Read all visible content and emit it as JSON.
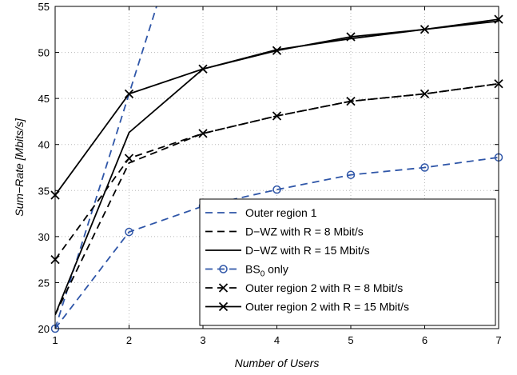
{
  "chart_data": {
    "type": "line",
    "xlabel": "Number of Users",
    "ylabel": "Sum−Rate [Mbits/s]",
    "xlim": [
      1,
      7
    ],
    "ylim": [
      20,
      55
    ],
    "xticks": [
      1,
      2,
      3,
      4,
      5,
      6,
      7
    ],
    "yticks": [
      20,
      25,
      30,
      35,
      40,
      45,
      50,
      55
    ],
    "grid": true,
    "legend_position": "lower-right",
    "series": [
      {
        "name": "Outer region 1",
        "color": "#2f56a8",
        "dash": "dashed",
        "marker": "none",
        "x": [
          1,
          2,
          3
        ],
        "y": [
          20,
          45.5,
          71
        ]
      },
      {
        "name": "D−WZ with R = 8 Mbit/s",
        "color": "#000000",
        "dash": "dashed",
        "marker": "none",
        "x": [
          1,
          2,
          3,
          4,
          5,
          6,
          7
        ],
        "y": [
          21.5,
          38.0,
          41.2,
          43.1,
          44.7,
          45.5,
          46.6
        ]
      },
      {
        "name": "D−WZ with R = 15 Mbit/s",
        "color": "#000000",
        "dash": "solid",
        "marker": "none",
        "x": [
          1,
          2,
          3,
          4,
          5,
          6,
          7
        ],
        "y": [
          21.5,
          41.3,
          48.2,
          50.3,
          51.5,
          52.5,
          53.4
        ]
      },
      {
        "name": "BS_0 only",
        "color": "#2f56a8",
        "dash": "dashed",
        "marker": "circle",
        "x": [
          1,
          2,
          3,
          4,
          5,
          6,
          7
        ],
        "y": [
          20.0,
          30.5,
          33.3,
          35.1,
          36.7,
          37.5,
          38.6
        ]
      },
      {
        "name": "Outer region 2 with R = 8 Mbit/s",
        "color": "#000000",
        "dash": "dashed",
        "marker": "x",
        "x": [
          1,
          2,
          3,
          4,
          5,
          6,
          7
        ],
        "y": [
          27.5,
          38.5,
          41.2,
          43.1,
          44.7,
          45.5,
          46.6
        ]
      },
      {
        "name": "Outer region 2 with R = 15 Mbit/s",
        "color": "#000000",
        "dash": "solid",
        "marker": "x",
        "x": [
          1,
          2,
          3,
          4,
          5,
          6,
          7
        ],
        "y": [
          34.5,
          45.5,
          48.2,
          50.2,
          51.7,
          52.5,
          53.6
        ]
      }
    ],
    "legend": {
      "entries": [
        {
          "label": "Outer region 1"
        },
        {
          "label": "D−WZ with R = 8 Mbit/s"
        },
        {
          "label": "D−WZ with R = 15 Mbit/s"
        },
        {
          "label": "BS",
          "sub": "0",
          "suffix": " only"
        },
        {
          "label": "Outer region 2 with R = 8 Mbit/s"
        },
        {
          "label": "Outer region 2 with R = 15 Mbit/s"
        }
      ]
    }
  }
}
